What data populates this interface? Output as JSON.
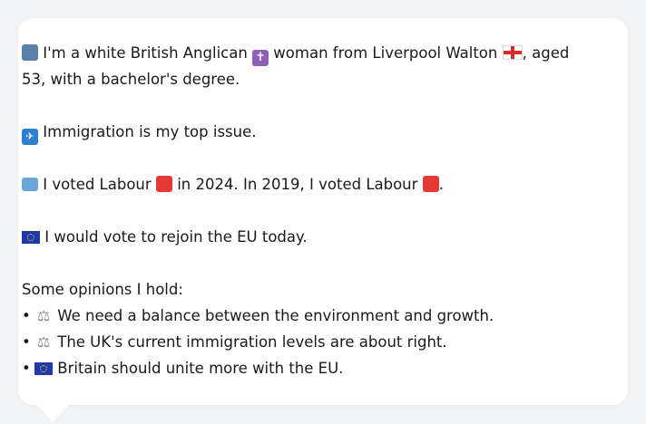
{
  "profile": {
    "line1": "I'm a white British Anglican",
    "line1b": "woman from Liverpool Walton",
    "line1c": ", aged",
    "line2": "53, with a bachelor's degree."
  },
  "issue": {
    "text": "Immigration is my top issue."
  },
  "votes": {
    "part1": "I voted Labour",
    "part2": "in 2024. In 2019, I voted Labour",
    "part3": "."
  },
  "eu": {
    "text": "I would vote to rejoin the EU today."
  },
  "opinions": {
    "heading": "Some opinions I hold:",
    "bullet": "•",
    "items": [
      "We need a balance between the environment and growth.",
      "The UK's current immigration levels are about right.",
      "Britain should unite more with the EU."
    ]
  },
  "icons": {
    "person": "person-icon",
    "cross": "latin-cross-icon",
    "england": "england-flag-icon",
    "immigration": "immigration-icon",
    "ballot": "ballot-box-icon",
    "labour": "red-square-icon",
    "eu_flag": "eu-flag-icon",
    "scales": "balance-scale-icon"
  },
  "colors": {
    "labour_red": "#e53935",
    "eu_blue": "#1f3aa8",
    "card_bg": "#ffffff",
    "page_bg": "#f2f3f5"
  }
}
